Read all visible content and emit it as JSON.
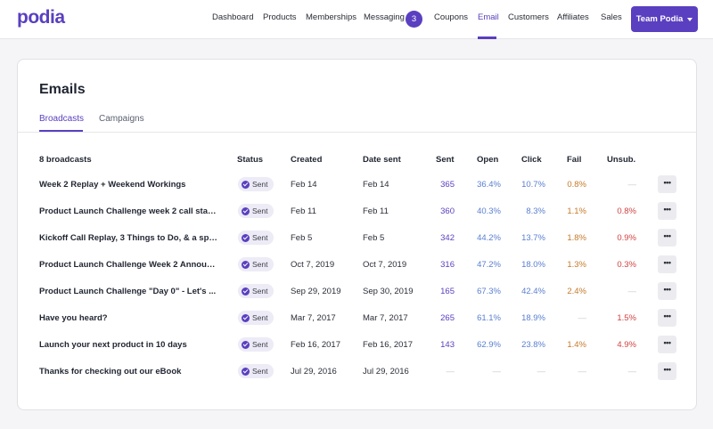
{
  "brand": {
    "logo": "podia",
    "accent": "#5a3fc0"
  },
  "nav": {
    "items": [
      "Dashboard",
      "Products",
      "Memberships",
      "Messaging",
      "Coupons",
      "Email",
      "Customers",
      "Affiliates",
      "Sales"
    ],
    "active": "Email",
    "messaging_badge": "3",
    "team_button": "Team Podia"
  },
  "page": {
    "title": "Emails",
    "tabs": [
      "Broadcasts",
      "Campaigns"
    ],
    "active_tab": "Broadcasts"
  },
  "table": {
    "headers": [
      "8 broadcasts",
      "Status",
      "Created",
      "Date sent",
      "Sent",
      "Open",
      "Click",
      "Fail",
      "Unsub."
    ],
    "more_label": "•••",
    "rows": [
      {
        "name": "Week 2 Replay + Weekend Workings",
        "status": "Sent",
        "created": "Feb 14",
        "date_sent": "Feb 14",
        "sent": "365",
        "open": "36.4%",
        "click": "10.7%",
        "fail": "0.8%",
        "unsub": "—"
      },
      {
        "name": "Product Launch Challenge week 2 call star...",
        "status": "Sent",
        "created": "Feb 11",
        "date_sent": "Feb 11",
        "sent": "360",
        "open": "40.3%",
        "click": "8.3%",
        "fail": "1.1%",
        "unsub": "0.8%"
      },
      {
        "name": "Kickoff Call Replay, 3 Things to Do, & a spe...",
        "status": "Sent",
        "created": "Feb 5",
        "date_sent": "Feb 5",
        "sent": "342",
        "open": "44.2%",
        "click": "13.7%",
        "fail": "1.8%",
        "unsub": "0.9%"
      },
      {
        "name": "Product Launch Challenge Week 2 Announ...",
        "status": "Sent",
        "created": "Oct 7, 2019",
        "date_sent": "Oct 7, 2019",
        "sent": "316",
        "open": "47.2%",
        "click": "18.0%",
        "fail": "1.3%",
        "unsub": "0.3%"
      },
      {
        "name": "Product Launch Challenge \"Day 0\" - Let's ...",
        "status": "Sent",
        "created": "Sep 29, 2019",
        "date_sent": "Sep 30, 2019",
        "sent": "165",
        "open": "67.3%",
        "click": "42.4%",
        "fail": "2.4%",
        "unsub": "—"
      },
      {
        "name": "Have you heard?",
        "status": "Sent",
        "created": "Mar 7, 2017",
        "date_sent": "Mar 7, 2017",
        "sent": "265",
        "open": "61.1%",
        "click": "18.9%",
        "fail": "—",
        "unsub": "1.5%"
      },
      {
        "name": "Launch your next product in 10 days",
        "status": "Sent",
        "created": "Feb 16, 2017",
        "date_sent": "Feb 16, 2017",
        "sent": "143",
        "open": "62.9%",
        "click": "23.8%",
        "fail": "1.4%",
        "unsub": "4.9%"
      },
      {
        "name": "Thanks for checking out our eBook",
        "status": "Sent",
        "created": "Jul 29, 2016",
        "date_sent": "Jul 29, 2016",
        "sent": "—",
        "open": "—",
        "click": "—",
        "fail": "—",
        "unsub": "—"
      }
    ]
  }
}
